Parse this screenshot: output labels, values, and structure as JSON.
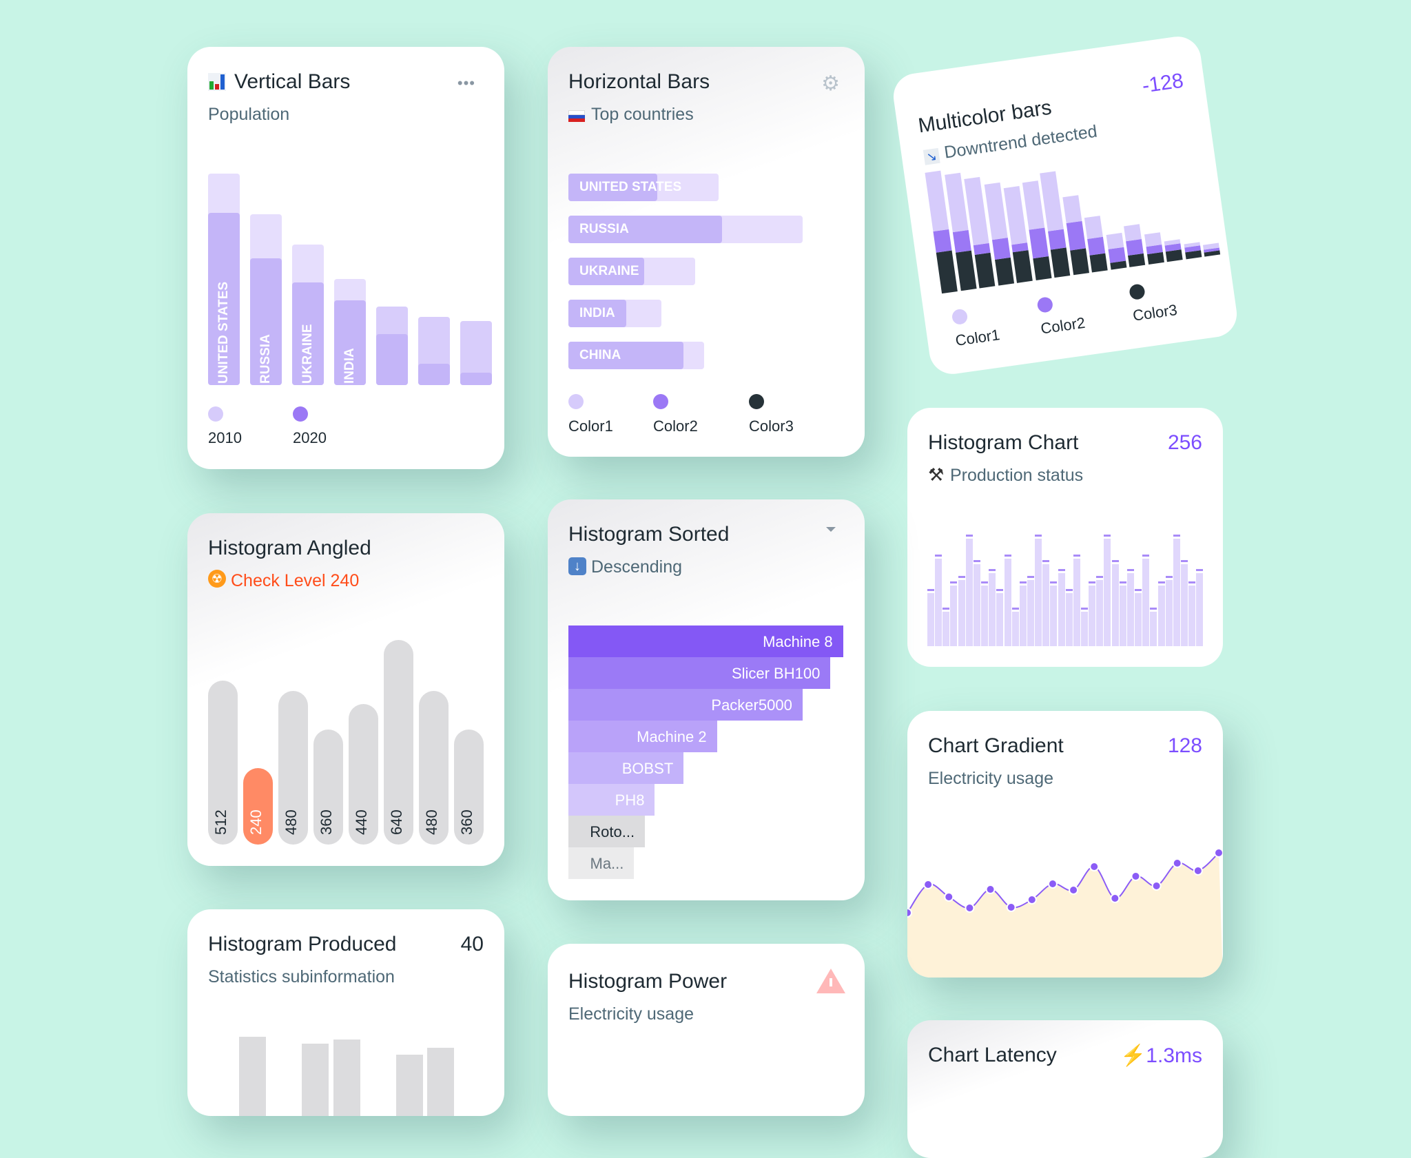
{
  "colors": {
    "background": "#c8f4e6",
    "accent": "#7c4dff",
    "color1": "#d6cbfb",
    "color2": "#9b78f5",
    "color3": "#263238",
    "orange": "#ff8a65",
    "alert": "#ff4d1a",
    "fill": "#fef2d8",
    "gray": "#dcdcde"
  },
  "vertical_bars": {
    "title": "Vertical Bars",
    "subtitle": "Population",
    "title_icon": "bar-chart-emoji",
    "menu_icon": "more-horizontal-icon",
    "legend": [
      {
        "label": "2010",
        "color": "#d6cbfb"
      },
      {
        "label": "2020",
        "color": "#9b78f5"
      }
    ]
  },
  "horizontal_bars": {
    "title": "Horizontal Bars",
    "subtitle": "Top countries",
    "subtitle_icon": "russia-flag",
    "menu_icon": "gear-icon",
    "legend": [
      {
        "label": "Color1",
        "color": "#d6cbfb"
      },
      {
        "label": "Color2",
        "color": "#9b78f5"
      },
      {
        "label": "Color3",
        "color": "#263238"
      }
    ]
  },
  "multicolor": {
    "title": "Multicolor bars",
    "subtitle": "Downtrend detected",
    "subtitle_icon": "chart-decreasing-emoji",
    "value": "-128",
    "legend": [
      {
        "label": "Color1",
        "color": "#d6cbfb"
      },
      {
        "label": "Color2",
        "color": "#9b78f5"
      },
      {
        "label": "Color3",
        "color": "#263238"
      }
    ]
  },
  "histogram_chart": {
    "title": "Histogram Chart",
    "subtitle": "Production status",
    "subtitle_icon": "hammer-pick-emoji",
    "value": "256"
  },
  "histogram_angled": {
    "title": "Histogram Angled",
    "subtitle": "Check Level 240",
    "subtitle_icon": "radioactive-emoji"
  },
  "histogram_sorted": {
    "title": "Histogram Sorted",
    "subtitle": "Descending",
    "subtitle_icon": "down-arrow-emoji",
    "menu_icon": "caret-down-icon"
  },
  "chart_gradient": {
    "title": "Chart Gradient",
    "subtitle": "Electricity usage",
    "value": "128"
  },
  "histogram_produced": {
    "title": "Histogram Produced",
    "subtitle": "Statistics subinformation",
    "value": "40"
  },
  "histogram_power": {
    "title": "Histogram Power",
    "subtitle": "Electricity usage",
    "icon": "warning-icon"
  },
  "chart_latency": {
    "title": "Chart Latency",
    "value": "1.3ms",
    "value_icon": "lightning-icon"
  },
  "chart_data": [
    {
      "id": "vertical_bars",
      "type": "bar",
      "categories": [
        "UNITED STATES",
        "RUSSIA",
        "UKRAINE",
        "INDIA",
        "",
        "",
        ""
      ],
      "series": [
        {
          "name": "2010",
          "values": [
            235,
            190,
            156,
            118,
            87,
            76,
            71
          ]
        },
        {
          "name": "2020",
          "values": [
            191,
            141,
            114,
            94,
            57,
            24,
            14
          ]
        }
      ],
      "legend": "bottom-left"
    },
    {
      "id": "horizontal_bars",
      "type": "bar",
      "orientation": "horizontal",
      "categories": [
        "UNITED STATES",
        "RUSSIA",
        "UKRAINE",
        "INDIA",
        "CHINA"
      ],
      "series": [
        {
          "values": [
            167,
            260,
            141,
            103,
            151
          ]
        },
        {
          "values": [
            99,
            171,
            84,
            64,
            128
          ]
        }
      ],
      "legend": "bottom-left"
    },
    {
      "id": "multicolor",
      "type": "bar",
      "stacked": true,
      "series": [
        {
          "name": "Color3",
          "values": [
            52,
            49,
            43,
            33,
            39,
            28,
            36,
            31,
            22,
            9,
            15,
            13,
            13,
            9,
            5
          ]
        },
        {
          "name": "Color2",
          "values": [
            27,
            26,
            12,
            25,
            10,
            36,
            23,
            35,
            21,
            17,
            18,
            10,
            8,
            6,
            4
          ]
        },
        {
          "name": "Color1",
          "values": [
            75,
            73,
            84,
            71,
            72,
            60,
            74,
            33,
            27,
            18,
            19,
            15,
            5,
            4,
            6
          ]
        }
      ],
      "legend": "bottom"
    },
    {
      "id": "histogram_chart",
      "type": "bar",
      "values": [
        83,
        133,
        56,
        94,
        102,
        162,
        125,
        94,
        112,
        83,
        133,
        56,
        94,
        102,
        162,
        125,
        94,
        112,
        83,
        133,
        56,
        94,
        102,
        162,
        125,
        94,
        112,
        83,
        133,
        56,
        94,
        102,
        162,
        125,
        94,
        112
      ]
    },
    {
      "id": "histogram_angled",
      "type": "bar",
      "values": [
        512,
        240,
        480,
        360,
        440,
        640,
        480,
        360
      ],
      "labels": [
        "512",
        "240",
        "480",
        "360",
        "440",
        "640",
        "480",
        "360"
      ],
      "highlight_index": 1
    },
    {
      "id": "histogram_sorted",
      "type": "bar",
      "orientation": "horizontal",
      "categories": [
        "Machine 8",
        "Slicer BH100",
        "Packer5000",
        "Machine 2",
        "BOBST",
        "PH8",
        "Roto...",
        "Ma..."
      ],
      "values": [
        305,
        291,
        260,
        165,
        128,
        96,
        85,
        73
      ]
    },
    {
      "id": "chart_gradient",
      "type": "area",
      "values": [
        74,
        115,
        97,
        81,
        108,
        82,
        93,
        116,
        107,
        141,
        95,
        127,
        113,
        146,
        135,
        161
      ]
    },
    {
      "id": "histogram_produced",
      "type": "bar",
      "values": [
        23,
        0,
        15,
        20,
        0,
        3,
        11
      ]
    }
  ]
}
